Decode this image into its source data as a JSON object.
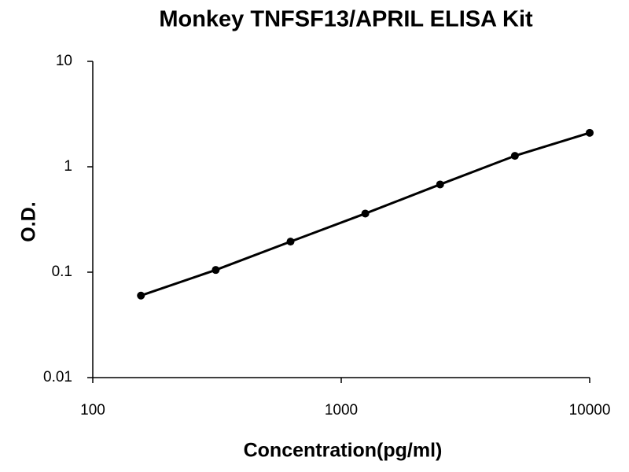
{
  "chart_data": {
    "type": "line",
    "title": "Monkey TNFSF13/APRIL ELISA Kit",
    "x_label": "Concentration(pg/ml)",
    "y_label": "O.D.",
    "x": [
      156.25,
      312.5,
      625,
      1250,
      2500,
      5000,
      10000
    ],
    "series": [
      {
        "color": "#000000",
        "values": [
          0.06,
          0.105,
          0.195,
          0.36,
          0.68,
          1.27,
          2.1
        ]
      }
    ],
    "xscale": "log",
    "yscale": "log",
    "xlim": [
      100,
      10000
    ],
    "ylim": [
      0.01,
      10
    ],
    "xticks": [
      100,
      1000,
      10000
    ],
    "yticks": [
      0.01,
      0.1,
      1,
      10
    ],
    "markers": true
  }
}
